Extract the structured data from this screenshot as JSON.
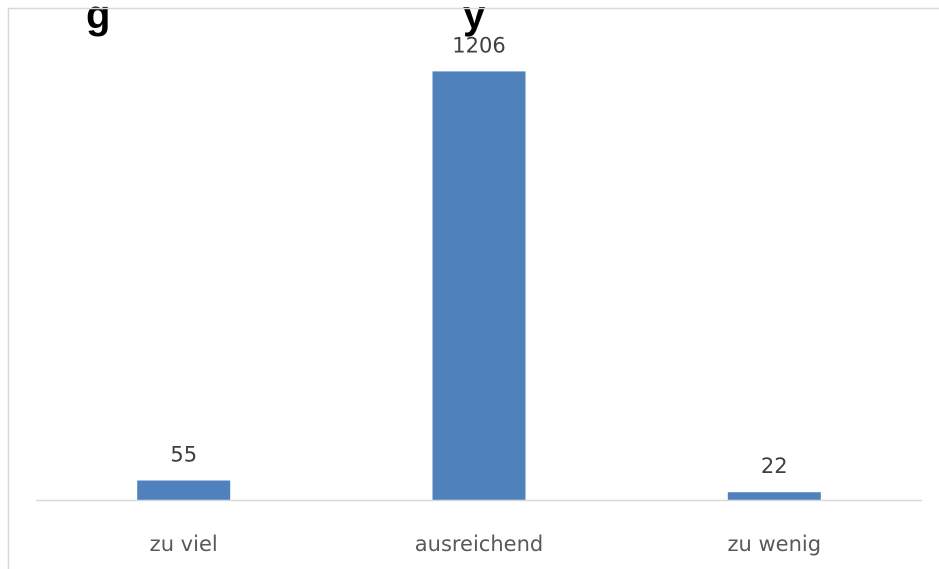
{
  "chart_data": {
    "type": "bar",
    "title": "",
    "xlabel": "",
    "ylabel": "",
    "categories": [
      "zu viel",
      "ausreichend",
      "zu wenig"
    ],
    "values": [
      55,
      1206,
      22
    ],
    "data_labels": [
      "55",
      "1206",
      "22"
    ],
    "ylim": [
      0,
      1300
    ],
    "grid": false,
    "legend": "none",
    "bar_color": "#4F81BD",
    "axis_color": "#D9D9D9",
    "border_color": "#D9D9D9"
  }
}
